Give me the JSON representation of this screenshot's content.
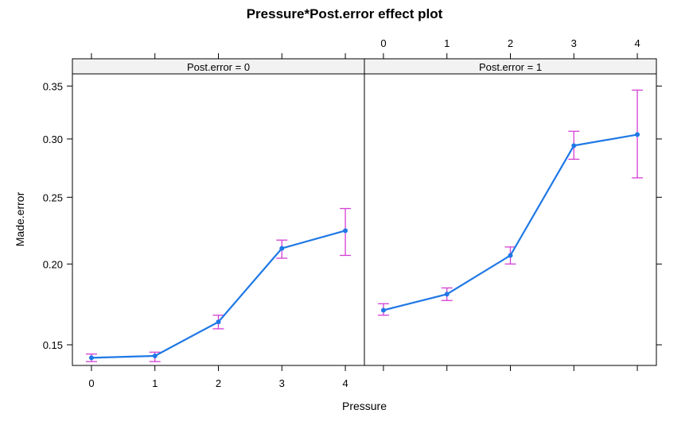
{
  "chart_data": {
    "type": "line",
    "title": "Pressure*Post.error effect plot",
    "xlabel": "Pressure",
    "ylabel": "Made.error",
    "x": [
      0,
      1,
      2,
      3,
      4
    ],
    "xlim": [
      -0.3,
      4.3
    ],
    "y_scale": "logit",
    "ylim": [
      0.139,
      0.362
    ],
    "yticks": [
      0.15,
      0.2,
      0.25,
      0.3,
      0.35
    ],
    "ytick_labels": [
      "0.15",
      "0.20",
      "0.25",
      "0.30",
      "0.35"
    ],
    "xticks": [
      0,
      1,
      2,
      3,
      4
    ],
    "xtick_labels": [
      "0",
      "1",
      "2",
      "3",
      "4"
    ],
    "line_color": "#1f78e6",
    "errorbar_color": "#d43fd4",
    "strip_color": "#f2f2f2",
    "panels": [
      {
        "strip": "Post.error = 0",
        "y": [
          0.143,
          0.144,
          0.163,
          0.211,
          0.224
        ],
        "lower": [
          0.141,
          0.141,
          0.159,
          0.204,
          0.206
        ],
        "upper": [
          0.145,
          0.146,
          0.167,
          0.217,
          0.241
        ]
      },
      {
        "strip": "Post.error = 1",
        "y": [
          0.17,
          0.18,
          0.206,
          0.294,
          0.304
        ],
        "lower": [
          0.167,
          0.176,
          0.2,
          0.282,
          0.266
        ],
        "upper": [
          0.174,
          0.184,
          0.212,
          0.307,
          0.346
        ]
      }
    ]
  }
}
